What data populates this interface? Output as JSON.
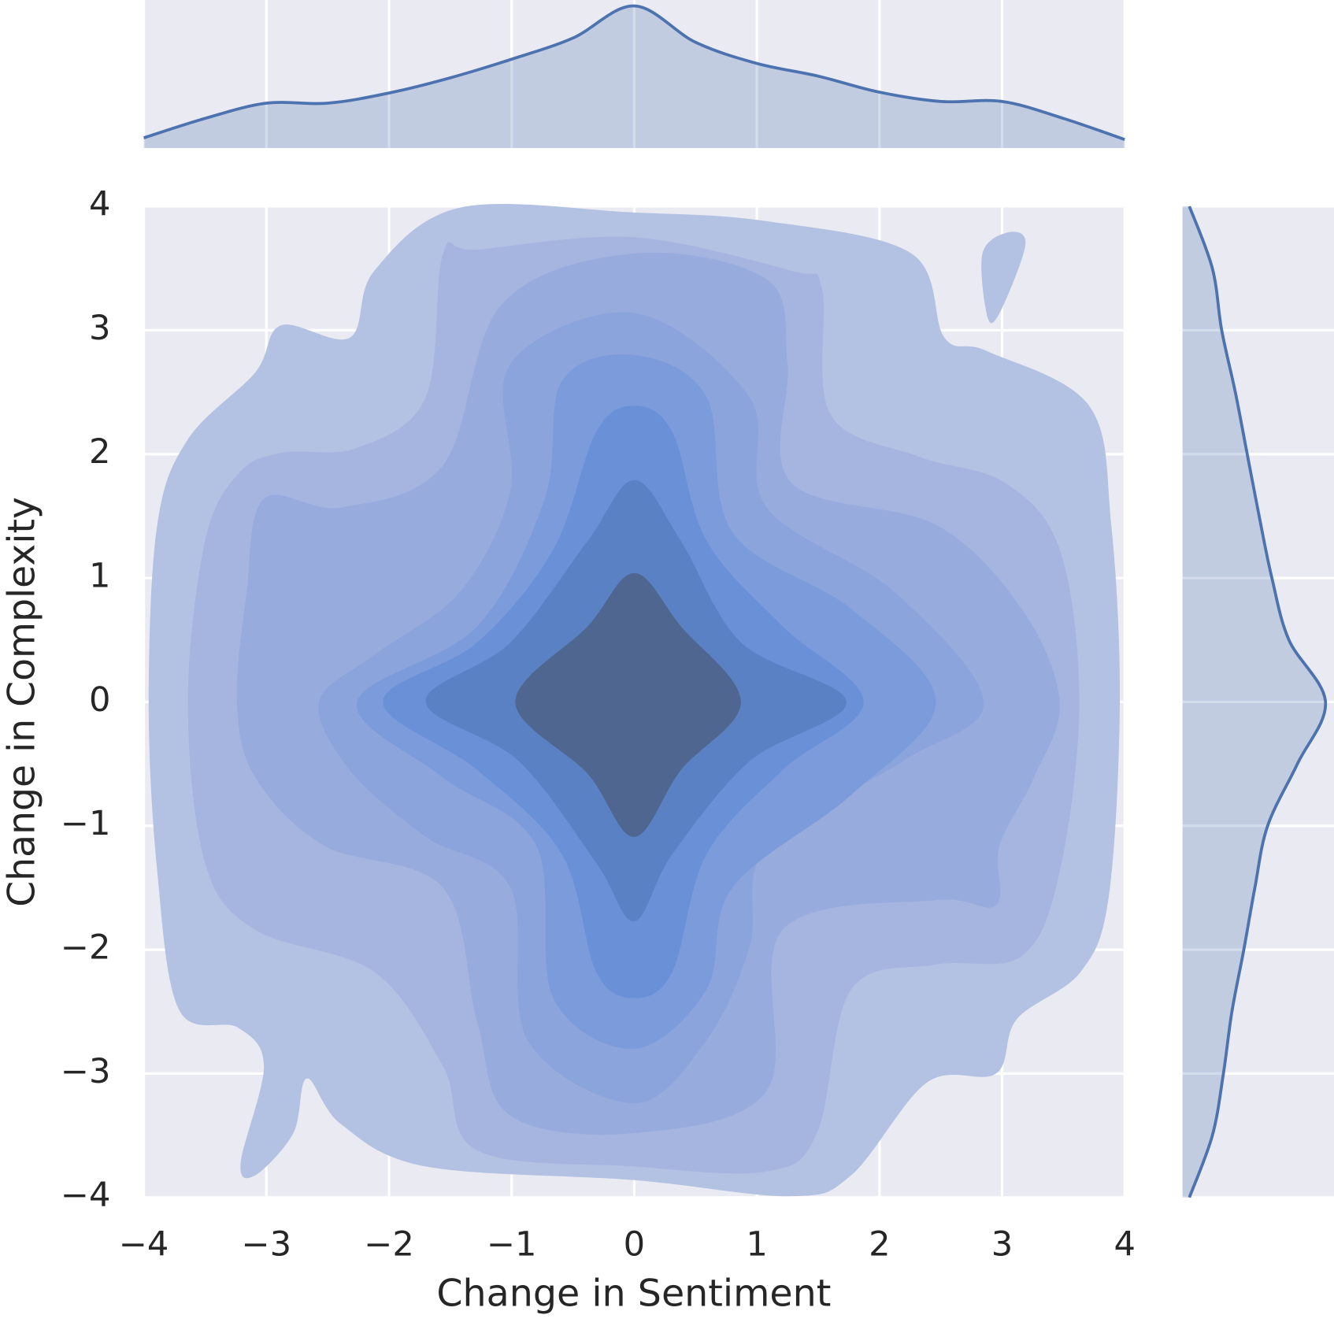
{
  "chart_data": {
    "type": "kde",
    "x_label": "Change in Sentiment",
    "y_label": "Change in Complexity",
    "xlim": [
      -4,
      4
    ],
    "ylim": [
      -4,
      4
    ],
    "xticks": [
      {
        "value": -4,
        "label": "−4"
      },
      {
        "value": -3,
        "label": "−3"
      },
      {
        "value": -2,
        "label": "−2"
      },
      {
        "value": -1,
        "label": "−1"
      },
      0,
      1,
      2,
      3,
      4
    ],
    "yticks": [
      {
        "value": -4,
        "label": "−4"
      },
      {
        "value": -3,
        "label": "−3"
      },
      {
        "value": -2,
        "label": "−2"
      },
      {
        "value": -1,
        "label": "−1"
      },
      0,
      1,
      2,
      3,
      4
    ],
    "grid": true,
    "contours": [
      {
        "color": "#b3c1e2",
        "x": [
          -3.96,
          -3.89,
          -3.64,
          -3.09,
          -2.88,
          -2.32,
          -2.12,
          -1.42,
          0,
          1.08,
          2.26,
          2.53,
          2.88,
          3.71,
          3.89,
          3.96,
          3.87,
          3.64,
          3.12,
          2.95,
          2.39,
          1.77,
          1.28,
          0,
          -1.7,
          -2.39,
          -2.67,
          -2.78,
          -3.09,
          -3.21,
          -3.02,
          -3.23,
          -3.71,
          -3.89
        ],
        "y": [
          0,
          1.43,
          2.12,
          2.66,
          3.04,
          2.94,
          3.48,
          3.99,
          3.95,
          3.88,
          3.62,
          2.94,
          2.83,
          2.39,
          1.43,
          0,
          -1.57,
          -2.18,
          -2.56,
          -3.0,
          -3.07,
          -3.82,
          -3.99,
          -3.86,
          -3.75,
          -3.41,
          -3.04,
          -3.48,
          -3.82,
          -3.72,
          -2.94,
          -2.63,
          -2.49,
          -1.37
        ]
      },
      {
        "color": "#b3c1e2",
        "x": [
          3.05,
          3.19,
          2.98,
          2.88,
          2.84
        ],
        "y": [
          3.79,
          3.69,
          3.14,
          3.11,
          3.62
        ]
      },
      {
        "color": "#a5b5e0",
        "x": [
          -3.64,
          -3.5,
          -3.23,
          -2.88,
          -2.26,
          -1.7,
          -1.56,
          -1.28,
          0,
          1.28,
          1.53,
          1.6,
          2.32,
          3.02,
          3.47,
          3.63,
          3.47,
          3.16,
          2.46,
          1.77,
          1.49,
          1.08,
          0,
          -1.28,
          -1.56,
          -2.12,
          -3.09,
          -3.5
        ],
        "y": [
          0,
          1.3,
          1.84,
          2.01,
          2.05,
          2.46,
          3.62,
          3.65,
          3.75,
          3.48,
          3.34,
          2.32,
          1.98,
          1.77,
          1.23,
          0,
          -1.37,
          -2.05,
          -2.12,
          -2.32,
          -3.48,
          -3.79,
          -3.75,
          -3.62,
          -2.94,
          -2.18,
          -1.84,
          -1.3
        ]
      },
      {
        "color": "#97acdd",
        "x": [
          -3.24,
          -3.16,
          -3.02,
          -2.39,
          -1.56,
          -1.08,
          0,
          1.08,
          1.25,
          1.28,
          2.46,
          3.16,
          3.47,
          3.26,
          2.98,
          2.95,
          2.46,
          1.21,
          1.08,
          0,
          -1.01,
          -1.28,
          -1.56,
          -2.53,
          -3.09
        ],
        "y": [
          0,
          0.89,
          1.64,
          1.57,
          1.91,
          3.21,
          3.62,
          3.41,
          2.73,
          1.77,
          1.43,
          0.75,
          0,
          -0.61,
          -1.16,
          -1.64,
          -1.6,
          -1.84,
          -3.14,
          -3.48,
          -3.34,
          -2.59,
          -1.5,
          -1.16,
          -0.61
        ]
      },
      {
        "color": "#8ba5dc",
        "x": [
          -2.57,
          -2.12,
          -1.42,
          -1.01,
          -1.01,
          0,
          0.94,
          1.08,
          2.12,
          2.85,
          2.19,
          1.08,
          0.94,
          0.59,
          0,
          -0.87,
          -1.01,
          -1.7,
          -2.32
        ],
        "y": [
          0,
          0.38,
          0.89,
          1.71,
          2.73,
          3.14,
          2.46,
          1.57,
          0.89,
          0,
          -0.48,
          -1.16,
          -1.98,
          -2.73,
          -3.24,
          -2.73,
          -1.5,
          -1.09,
          -0.55
        ]
      },
      {
        "color": "#7c9bdb",
        "x": [
          -2.26,
          -1.28,
          -0.73,
          -0.59,
          0,
          0.59,
          0.8,
          1.77,
          2.46,
          1.77,
          0.8,
          0.59,
          0,
          -0.66,
          -0.8,
          -1.56
        ],
        "y": [
          0,
          0.61,
          1.64,
          2.59,
          2.8,
          2.46,
          1.37,
          0.75,
          0,
          -0.75,
          -1.5,
          -2.32,
          -2.8,
          -2.39,
          -1.16,
          -0.61
        ]
      },
      {
        "color": "#6a90d8",
        "x": [
          -2.05,
          -1.28,
          -0.66,
          -0.31,
          0,
          0.31,
          0.59,
          1.21,
          1.87,
          1.21,
          0.59,
          0.31,
          0,
          -0.31,
          -0.59,
          -1.28
        ],
        "y": [
          0,
          0.48,
          1.23,
          2.18,
          2.39,
          2.18,
          1.3,
          0.61,
          0,
          -0.55,
          -1.23,
          -2.18,
          -2.39,
          -2.18,
          -1.23,
          -0.55
        ]
      },
      {
        "color": "#5b81c5",
        "x": [
          -1.7,
          -1.01,
          -0.38,
          0,
          0.38,
          0.87,
          1.73,
          0.94,
          0.31,
          0,
          -0.31,
          -0.94
        ],
        "y": [
          0,
          0.48,
          1.3,
          1.79,
          1.3,
          0.48,
          0,
          -0.48,
          -1.23,
          -1.77,
          -1.3,
          -0.48
        ]
      },
      {
        "color": "#4f6691",
        "x": [
          -0.97,
          -0.38,
          0,
          0.38,
          0.87,
          0.38,
          0,
          -0.38
        ],
        "y": [
          0,
          0.61,
          1.04,
          0.61,
          0,
          -0.55,
          -1.09,
          -0.58
        ]
      }
    ],
    "marginal_x": {
      "color": "#4c72b0",
      "x": [
        -4,
        -3.5,
        -3,
        -2.5,
        -2,
        -1.5,
        -1,
        -0.5,
        0,
        0.5,
        1,
        1.5,
        2,
        2.5,
        3,
        3.5,
        4
      ],
      "density": [
        0.012,
        0.035,
        0.053,
        0.053,
        0.065,
        0.083,
        0.105,
        0.13,
        0.168,
        0.125,
        0.1,
        0.085,
        0.066,
        0.055,
        0.055,
        0.035,
        0.01
      ],
      "density_lim": [
        0,
        0.175
      ]
    },
    "marginal_y": {
      "color": "#4c72b0",
      "y": [
        -4,
        -3.5,
        -3,
        -2.5,
        -2,
        -1.5,
        -1,
        -0.5,
        0,
        0.5,
        1,
        1.5,
        2,
        2.5,
        3,
        3.5,
        4
      ],
      "density": [
        0.008,
        0.035,
        0.048,
        0.058,
        0.072,
        0.085,
        0.1,
        0.135,
        0.168,
        0.125,
        0.105,
        0.09,
        0.076,
        0.062,
        0.046,
        0.035,
        0.008
      ],
      "density_lim": [
        0,
        0.178
      ]
    }
  }
}
